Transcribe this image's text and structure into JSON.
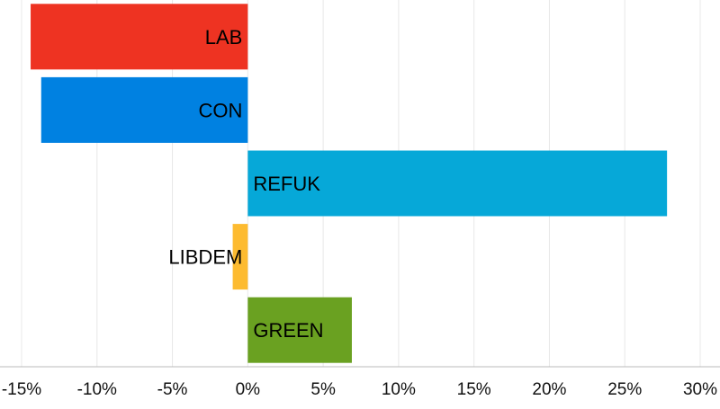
{
  "chart_data": {
    "type": "bar",
    "orientation": "horizontal",
    "categories": [
      "LAB",
      "CON",
      "REFUK",
      "LIBDEM",
      "GREEN"
    ],
    "values": [
      -14.4,
      -13.7,
      27.8,
      -1.0,
      6.9
    ],
    "colors": [
      "#ee3322",
      "#0081e1",
      "#06a8d8",
      "#fdbb30",
      "#6aa121"
    ],
    "xlim": [
      -16,
      31
    ],
    "x_ticks": [
      -15,
      -10,
      -5,
      0,
      5,
      10,
      15,
      20,
      25,
      30
    ],
    "x_tick_labels": [
      "-15%",
      "-10%",
      "-5%",
      "0%",
      "5%",
      "10%",
      "15%",
      "20%",
      "25%",
      "30%"
    ],
    "grid": true,
    "title": "",
    "xlabel": "",
    "ylabel": ""
  }
}
